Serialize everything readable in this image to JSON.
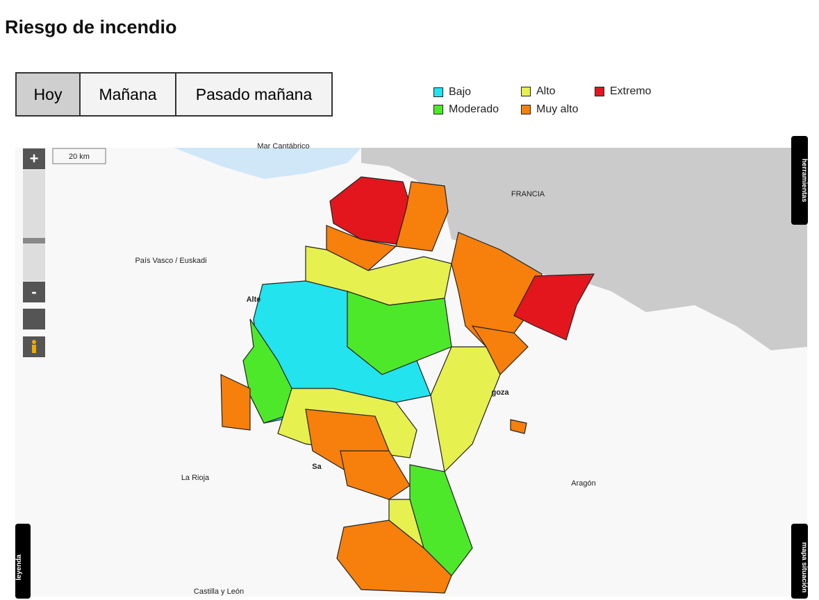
{
  "header": {
    "title": "Riesgo de incendio"
  },
  "tabs": [
    "Hoy",
    "Mañana",
    "Pasado mañana"
  ],
  "legend": [
    {
      "label": "Bajo",
      "color": "#22e3ee"
    },
    {
      "label": "Moderado",
      "color": "#4ee82a"
    },
    {
      "label": "Alto",
      "color": "#e6f04f"
    },
    {
      "label": "Muy alto",
      "color": "#f77f0c"
    },
    {
      "label": "Extremo",
      "color": "#e3161d"
    }
  ],
  "map": {
    "scale": "20 km",
    "zoom_in": "+",
    "zoom_out": "-",
    "labels": [
      "Mar Cantábrico",
      "FRANCIA",
      "País Vasco / Euskadi",
      "Alte",
      "goza",
      "La Rioja",
      "Sa",
      "Aragón",
      "Castilla y León"
    ],
    "side_tabs": {
      "tools": "herramientas",
      "legend": "leyenda",
      "location": "mapa situación"
    }
  }
}
